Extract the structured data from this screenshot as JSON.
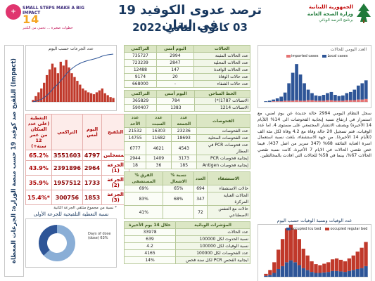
{
  "header": {
    "title": "ترصد عدوى الكوفيد 19 في لبنان",
    "date": "03 كانون الثاني 2022",
    "left_logo": {
      "badge": "+",
      "line1": "SMALL STEPS MAKE A BIG IMPACT",
      "number": "14",
      "line2": "خطوات صغيرة ... تحمي من الكثير"
    },
    "right_logo": {
      "line1": "الجمهورية اللبنانية",
      "line2": "وزارة الصحة العامة",
      "line3": "برنامج الترصد الوبائي"
    },
    "colors": {
      "title": "#17375e",
      "ministry_red": "#c00000",
      "ministry_green": "#1f7a3a"
    }
  },
  "sidebar_strip": "(Impact) التلقيح ضد كوفيد 19 حسب منصة الوزارة: الجرعات المعطاة",
  "left": {
    "chart_title": "عدد الجرعات حسب اليوم",
    "vaccination_table": {
      "headers": [
        "التلقيح",
        "اليوم أمس",
        "التراكمي",
        "التغطية (على عدد السكان من عمر 12 سنة+)"
      ],
      "rows": [
        {
          "label": "المسجلين",
          "daily": "4797",
          "cumulative": "3551603",
          "coverage": "65.2%"
        },
        {
          "label": "الجرعة (1)",
          "daily": "2964",
          "cumulative": "2391896",
          "coverage": "43.9%"
        },
        {
          "label": "الجرعة (2)",
          "daily": "1733",
          "cumulative": "1957512",
          "coverage": "35.9%"
        },
        {
          "label": "الجرعة (3)",
          "daily": "1853",
          "cumulative": "300756",
          "coverage": "15.4%*"
        }
      ],
      "note": "* نسبة من مجموع متلقي الجرعة الثانية"
    },
    "pie_title": "نسبة التغطية التلقيحية للجرعة الأولى",
    "pie_label": "Days of dose (dose) 63%"
  },
  "middle": {
    "cases": {
      "headers": [
        "الحالات",
        "اليوم أمس",
        "التراكمي"
      ],
      "rows": [
        [
          "عدد الحالات المثبتة",
          "2994",
          "735727"
        ],
        [
          "عدد الحالات المحلية",
          "2847",
          "723239"
        ],
        [
          "عدد الحالات الوافدة",
          "147",
          "12488"
        ],
        [
          "عدد حالات الوفاة",
          "20",
          "9174"
        ],
        [
          "عدد حالات الشفاء",
          "-",
          "668000"
        ]
      ]
    },
    "after_reopening": {
      "headers": [
        "الخط الساخن",
        "اليوم أمس",
        "التراكمي"
      ],
      "rows": [
        [
          "الاتصالات 1787(*)",
          "784",
          "365829"
        ],
        [
          "الاتصالات 1214",
          "1383",
          "590407"
        ]
      ]
    },
    "tests": {
      "headers": [
        "الفحوصات",
        "عدد الجمعة",
        "عدد السبت",
        "عدد الأحد"
      ],
      "rows": [
        [
          "عدد الفحوصات",
          "23236",
          "16303",
          "21532"
        ],
        [
          "عدد الفحوصات المحلية",
          "18693",
          "11682",
          "14755"
        ],
        [
          "عدد فحوصات PCR في المطار",
          "4543",
          "4621",
          "6777"
        ],
        [
          "إيجابية فحوصات PCR",
          "3173",
          "1409",
          "2944"
        ],
        [
          "إيجابية فحوصات Antigen",
          "185",
          "36",
          "18"
        ]
      ]
    },
    "hospital": {
      "headers": [
        "الاستشفاء",
        "العدد",
        "% نسبة الاشغال",
        "% الفرق المستشفى"
      ],
      "rows": [
        [
          "حالات الاستشفاء",
          "694",
          "65%",
          "69%"
        ],
        [
          "الحالات العناية المركزة",
          "347",
          "68%",
          "83%"
        ],
        [
          "حالات مع التنفس الاصطناعي",
          "72",
          "",
          "41%"
        ]
      ]
    },
    "indicators": {
      "headers": [
        "المؤشرات الوبائية",
        "خلال 14 يوم الأخيرة"
      ],
      "rows": [
        [
          "عدد الحالات",
          "33978"
        ],
        [
          "نسبة الحدوث لكل 100000",
          "639"
        ],
        [
          "نسبة الوفيات لكل 100000",
          "4.2"
        ],
        [
          "عدد الفحوصات لكل 100000",
          "4165"
        ],
        [
          "ايجابية الفحص PCR لكل سنة فحص",
          "14%"
        ]
      ]
    }
  },
  "right": {
    "chart_title": "العدد اليومي للحالات",
    "legend": [
      "imported cases",
      "Local cases"
    ],
    "narrative": "سجل النظام اليومي 2994 حالة جديدة عن يوم امس، مع استمرار في ارتفاع نسبة إيجابية الفحوصات الى 14% (للأيام 14 الأخيرة) ويصنف الانتشار المجتمعي على مستوى 4. اما عدد الوفيات، فتم تسجيل 20 حالة وفاة مع 4.2 وفاة لكل مئة الف (للأيام 14 الأخيرة). من جهة الاستشفاء، بلغت نسبة استعمال اسرة العناية الفائقة 68% (347 سرير من اصل 437). فيما خص تقصي الحالات في الايام 7 الأخيرة، كانت نسبة تقصي الحالات 67%، بينما في 58% للحالات التي افادت بالمخالطين.",
    "chart2_title": "عدد الوفيات ونسبة الوفيات حسب اليوم",
    "legend2": [
      "occupied icu bed",
      "occupied regular bed"
    ]
  },
  "chart_data": [
    {
      "type": "bar",
      "title": "عدد الجرعات حسب اليوم",
      "series": [
        {
          "values": [
            2,
            6,
            10,
            14,
            20,
            28,
            34,
            40,
            36,
            30,
            42,
            38,
            44,
            36,
            30,
            26,
            22,
            18,
            14,
            12,
            10,
            9,
            8,
            10,
            12,
            14,
            9,
            7,
            5,
            4
          ]
        }
      ],
      "ylim": [
        0,
        50
      ]
    },
    {
      "type": "pie",
      "values": [
        63,
        37
      ]
    },
    {
      "type": "bar",
      "title": "العدد اليومي للحالات",
      "series": [
        {
          "name": "imported cases",
          "values": [
            0,
            0,
            1,
            1,
            1,
            2,
            2,
            2,
            3,
            2,
            2,
            3,
            3,
            2,
            2,
            2,
            3,
            3,
            2,
            2,
            2,
            3,
            3,
            3,
            4,
            4,
            5
          ]
        },
        {
          "name": "Local cases",
          "values": [
            1,
            2,
            3,
            5,
            8,
            14,
            30,
            48,
            62,
            45,
            30,
            18,
            12,
            9,
            8,
            10,
            12,
            14,
            10,
            8,
            9,
            12,
            14,
            18,
            24,
            28,
            32
          ]
        }
      ],
      "ylim": [
        0,
        70
      ]
    },
    {
      "type": "area",
      "title": "عدد الوفيات ونسبة الوفيات حسب اليوم",
      "series": [
        {
          "name": "occupied icu bed",
          "values": [
            2,
            4,
            8,
            16,
            22,
            30,
            34,
            30,
            24,
            18,
            14,
            10,
            8,
            8,
            9,
            10,
            12,
            12,
            11,
            10,
            12,
            14,
            16,
            18,
            22
          ]
        },
        {
          "name": "occupied regular bed",
          "values": [
            4,
            10,
            22,
            40,
            56,
            70,
            76,
            68,
            54,
            40,
            30,
            22,
            18,
            16,
            18,
            20,
            24,
            26,
            24,
            22,
            26,
            30,
            36,
            42,
            50
          ]
        }
      ],
      "ylim": [
        0,
        90
      ]
    }
  ]
}
